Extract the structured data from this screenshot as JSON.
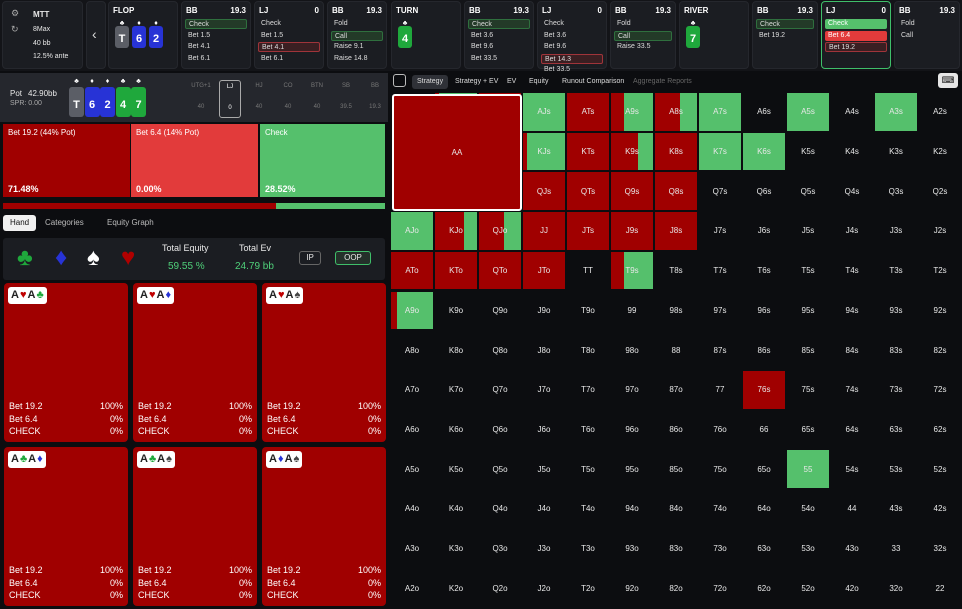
{
  "game": {
    "type": "MTT",
    "format": "8Max",
    "stack": "40 bb",
    "ante": "12.5% ante"
  },
  "history": [
    {
      "head": "FLOP",
      "kind": "street",
      "cards": [
        {
          "r": "T",
          "s": "♣",
          "c": "gray"
        },
        {
          "r": "6",
          "s": "♦",
          "c": "blue"
        },
        {
          "r": "2",
          "s": "♦",
          "c": "blue"
        }
      ]
    },
    {
      "head": "BB",
      "val": "19.3",
      "actions": [
        {
          "t": "Check",
          "st": "hl"
        },
        {
          "t": "Bet 1.5"
        },
        {
          "t": "Bet 4.1"
        },
        {
          "t": "Bet 6.1"
        }
      ]
    },
    {
      "head": "LJ",
      "val": "0",
      "actions": [
        {
          "t": "Check"
        },
        {
          "t": "Bet 1.5"
        },
        {
          "t": "Bet 4.1",
          "st": "hr"
        },
        {
          "t": "Bet 6.1"
        }
      ]
    },
    {
      "head": "BB",
      "val": "19.3",
      "actions": [
        {
          "t": "Fold"
        },
        {
          "t": "Call",
          "st": "hl"
        },
        {
          "t": "Raise 9.1"
        },
        {
          "t": "Raise 14.8"
        }
      ]
    },
    {
      "head": "TURN",
      "kind": "street",
      "cards": [
        {
          "r": "4",
          "s": "♣",
          "c": "green"
        }
      ]
    },
    {
      "head": "BB",
      "val": "19.3",
      "actions": [
        {
          "t": "Check",
          "st": "hl"
        },
        {
          "t": "Bet 3.6"
        },
        {
          "t": "Bet 9.6"
        },
        {
          "t": "Bet 33.5"
        }
      ]
    },
    {
      "head": "LJ",
      "val": "0",
      "actions": [
        {
          "t": "Check"
        },
        {
          "t": "Bet 3.6"
        },
        {
          "t": "Bet 9.6"
        },
        {
          "t": "Bet 14.3",
          "st": "hr"
        },
        {
          "t": "Bet 33.5"
        }
      ]
    },
    {
      "head": "BB",
      "val": "19.3",
      "actions": [
        {
          "t": "Fold"
        },
        {
          "t": "Call",
          "st": "hl"
        },
        {
          "t": "Raise 33.5"
        }
      ]
    },
    {
      "head": "RIVER",
      "kind": "street",
      "cards": [
        {
          "r": "7",
          "s": "♣",
          "c": "green"
        }
      ]
    },
    {
      "head": "BB",
      "val": "19.3",
      "actions": [
        {
          "t": "Check",
          "st": "hl"
        },
        {
          "t": "Bet 19.2"
        }
      ]
    },
    {
      "head": "LJ",
      "val": "0",
      "sel": true,
      "actions": [
        {
          "t": "Check",
          "st": "sgreen"
        },
        {
          "t": "Bet 6.4",
          "st": "red"
        },
        {
          "t": "Bet 19.2",
          "st": "hr"
        }
      ]
    },
    {
      "head": "BB",
      "val": "19.3",
      "actions": [
        {
          "t": "Fold"
        },
        {
          "t": "Call"
        }
      ]
    }
  ],
  "board": {
    "pot_label": "Pot",
    "pot": "42.90bb",
    "spr": "SPR: 0.00",
    "cards": [
      {
        "r": "T",
        "s": "♣",
        "c": "gray"
      },
      {
        "r": "6",
        "s": "♦",
        "c": "blue"
      },
      {
        "r": "2",
        "s": "♦",
        "c": "blue"
      },
      {
        "r": "4",
        "s": "♣",
        "c": "green"
      },
      {
        "r": "7",
        "s": "♣",
        "c": "green"
      }
    ],
    "positions": [
      {
        "n": "UTG+1",
        "v": "40"
      },
      {
        "n": "LJ",
        "v": "0",
        "cur": true
      },
      {
        "n": "HJ",
        "v": "40"
      },
      {
        "n": "CO",
        "v": "40"
      },
      {
        "n": "BTN",
        "v": "40"
      },
      {
        "n": "SB",
        "v": "39.5"
      },
      {
        "n": "BB",
        "v": "19.3"
      }
    ]
  },
  "strategy": [
    {
      "label": "Bet 19.2 (44% Pot)",
      "pct": "71.48%",
      "color": "#a00000",
      "frac": 0.7148
    },
    {
      "label": "Bet 6.4 (14% Pot)",
      "pct": "0.00%",
      "color": "#e23b3b",
      "frac": 0.0
    },
    {
      "label": "Check",
      "pct": "28.52%",
      "color": "#55c06c",
      "frac": 0.2852
    }
  ],
  "subtabs": [
    "Hand",
    "Categories",
    "Equity Graph"
  ],
  "equity": {
    "total_equity_label": "Total Equity",
    "total_equity": "59.55 %",
    "total_ev_label": "Total Ev",
    "total_ev": "24.79 bb",
    "ip": "IP",
    "oop": "OOP"
  },
  "combos": [
    {
      "cards": [
        {
          "r": "A",
          "s": "♥"
        },
        {
          "r": "A",
          "s": "♣"
        }
      ],
      "rows": [
        [
          "Bet 19.2",
          "100%"
        ],
        [
          "Bet 6.4",
          "0%"
        ],
        [
          "CHECK",
          "0%"
        ]
      ]
    },
    {
      "cards": [
        {
          "r": "A",
          "s": "♥"
        },
        {
          "r": "A",
          "s": "♦"
        }
      ],
      "rows": [
        [
          "Bet 19.2",
          "100%"
        ],
        [
          "Bet 6.4",
          "0%"
        ],
        [
          "CHECK",
          "0%"
        ]
      ]
    },
    {
      "cards": [
        {
          "r": "A",
          "s": "♥"
        },
        {
          "r": "A",
          "s": "♠"
        }
      ],
      "rows": [
        [
          "Bet 19.2",
          "100%"
        ],
        [
          "Bet 6.4",
          "0%"
        ],
        [
          "CHECK",
          "0%"
        ]
      ]
    },
    {
      "cards": [
        {
          "r": "A",
          "s": "♣"
        },
        {
          "r": "A",
          "s": "♦"
        }
      ],
      "rows": [
        [
          "Bet 19.2",
          "100%"
        ],
        [
          "Bet 6.4",
          "0%"
        ],
        [
          "CHECK",
          "0%"
        ]
      ]
    },
    {
      "cards": [
        {
          "r": "A",
          "s": "♣"
        },
        {
          "r": "A",
          "s": "♠"
        }
      ],
      "rows": [
        [
          "Bet 19.2",
          "100%"
        ],
        [
          "Bet 6.4",
          "0%"
        ],
        [
          "CHECK",
          "0%"
        ]
      ]
    },
    {
      "cards": [
        {
          "r": "A",
          "s": "♦"
        },
        {
          "r": "A",
          "s": "♠"
        }
      ],
      "rows": [
        [
          "Bet 19.2",
          "100%"
        ],
        [
          "Bet 6.4",
          "0%"
        ],
        [
          "CHECK",
          "0%"
        ]
      ]
    }
  ],
  "right_tabs": [
    "Strategy",
    "Strategy + EV",
    "EV",
    "Equity",
    "Runout Comparison",
    "Aggregate Reports"
  ],
  "grid": {
    "ranks": [
      "A",
      "K",
      "Q",
      "J",
      "T",
      "9",
      "8",
      "7",
      "6",
      "5",
      "4",
      "3",
      "2"
    ],
    "colors": {
      "bet_big": "#a00000",
      "check": "#55c06c",
      "empty": "#0c0d10"
    },
    "check_frac": {
      "AKs": 0.9,
      "AQs": 0.0,
      "AJs": 1.0,
      "ATs": 0.0,
      "A9s": 0.7,
      "A8s": 0.4,
      "A7s": 1.0,
      "A5s": 1.0,
      "A3s": 1.0,
      "KJs": 0.9,
      "KTs": 0.0,
      "K9s": 0.35,
      "K8s": 0.0,
      "K7s": 1.0,
      "K6s": 1.0,
      "QJs": 0.0,
      "QTs": 0.0,
      "Q9s": 0.0,
      "Q8s": 0.0,
      "AJo": 1.0,
      "KJo": 0.3,
      "QJo": 0.4,
      "JJ": 0.0,
      "JTs": 0.0,
      "J9s": 0.0,
      "J8s": 0.0,
      "ATo": 0.0,
      "KTo": 0.0,
      "QTo": 0.0,
      "JTo": 0.0,
      "T9s": 0.7,
      "A9o": 0.85,
      "76s": 0.0,
      "55": 1.0
    },
    "bet_only": [
      "KQs",
      "AQs",
      "ATs",
      "K8s",
      "KTs",
      "QJs",
      "QTs",
      "Q9s",
      "Q8s",
      "JJ",
      "JTs",
      "J9s",
      "J8s",
      "ATo",
      "KTo",
      "QTo",
      "JTo",
      "76s"
    ]
  }
}
